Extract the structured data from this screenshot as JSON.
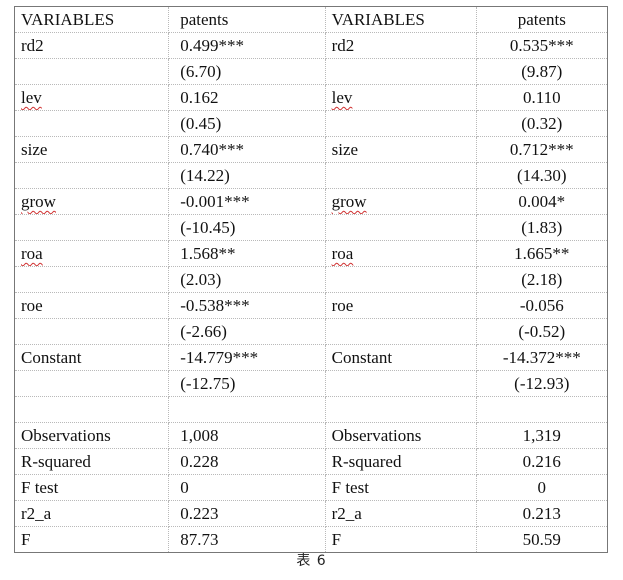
{
  "header": {
    "left_var": "VARIABLES",
    "left_dep": "patents",
    "right_var": "VARIABLES",
    "right_dep": "patents"
  },
  "rows": [
    {
      "lv": "rd2",
      "lval": "0.499***",
      "rv": "rd2",
      "rval": "0.535***"
    },
    {
      "lv": "",
      "lval": "(6.70)",
      "rv": "",
      "rval": "(9.87)"
    },
    {
      "lv": "lev",
      "lval": "0.162",
      "rv": "lev",
      "rval": "0.110"
    },
    {
      "lv": "",
      "lval": "(0.45)",
      "rv": "",
      "rval": "(0.32)"
    },
    {
      "lv": "size",
      "lval": "0.740***",
      "rv": "size",
      "rval": "0.712***"
    },
    {
      "lv": "",
      "lval": "(14.22)",
      "rv": "",
      "rval": "(14.30)"
    },
    {
      "lv": "grow",
      "lval": "-0.001***",
      "rv": "grow",
      "rval": "0.004*"
    },
    {
      "lv": "",
      "lval": "(-10.45)",
      "rv": "",
      "rval": "(1.83)"
    },
    {
      "lv": "roa",
      "lval": "1.568**",
      "rv": "roa",
      "rval": "1.665**"
    },
    {
      "lv": "",
      "lval": "(2.03)",
      "rv": "",
      "rval": "(2.18)"
    },
    {
      "lv": "roe",
      "lval": "-0.538***",
      "rv": "roe",
      "rval": "-0.056"
    },
    {
      "lv": "",
      "lval": "(-2.66)",
      "rv": "",
      "rval": "(-0.52)"
    },
    {
      "lv": "Constant",
      "lval": "-14.779***",
      "rv": "Constant",
      "rval": "-14.372***"
    },
    {
      "lv": "",
      "lval": "(-12.75)",
      "rv": "",
      "rval": "(-12.93)"
    },
    {
      "lv": "",
      "lval": "",
      "rv": "",
      "rval": ""
    },
    {
      "lv": "Observations",
      "lval": "1,008",
      "rv": "Observations",
      "rval": "1,319"
    },
    {
      "lv": "R-squared",
      "lval": "0.228",
      "rv": "R-squared",
      "rval": "0.216"
    },
    {
      "lv": "F test",
      "lval": "0",
      "rv": "F test",
      "rval": "0"
    },
    {
      "lv": "r2_a",
      "lval": "0.223",
      "rv": "r2_a",
      "rval": "0.213"
    },
    {
      "lv": "F",
      "lval": "87.73",
      "rv": "F",
      "rval": "50.59"
    }
  ],
  "caption": "表 6"
}
